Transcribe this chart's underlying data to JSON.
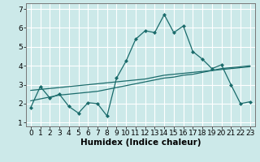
{
  "background_color": "#cce9e9",
  "grid_color": "#ffffff",
  "line_color": "#1a6b6b",
  "xlabel": "Humidex (Indice chaleur)",
  "xlabel_fontsize": 7.5,
  "tick_fontsize": 6.5,
  "xlim": [
    -0.5,
    23.5
  ],
  "ylim": [
    0.8,
    7.3
  ],
  "yticks": [
    1,
    2,
    3,
    4,
    5,
    6,
    7
  ],
  "xticks": [
    0,
    1,
    2,
    3,
    4,
    5,
    6,
    7,
    8,
    9,
    10,
    11,
    12,
    13,
    14,
    15,
    16,
    17,
    18,
    19,
    20,
    21,
    22,
    23
  ],
  "series1_x": [
    0,
    1,
    2,
    3,
    4,
    5,
    6,
    7,
    8,
    9,
    10,
    11,
    12,
    13,
    14,
    15,
    16,
    17,
    18,
    19,
    20,
    21,
    22,
    23
  ],
  "series1_y": [
    1.8,
    2.9,
    2.3,
    2.5,
    1.85,
    1.5,
    2.05,
    2.0,
    1.35,
    3.35,
    4.25,
    5.4,
    5.85,
    5.75,
    6.7,
    5.75,
    6.1,
    4.75,
    4.35,
    3.85,
    4.05,
    3.0,
    2.0,
    2.1
  ],
  "series2_x": [
    0,
    1,
    2,
    3,
    4,
    5,
    6,
    7,
    8,
    9,
    10,
    11,
    12,
    13,
    14,
    15,
    16,
    17,
    18,
    19,
    20,
    21,
    22,
    23
  ],
  "series2_y": [
    2.15,
    2.25,
    2.35,
    2.45,
    2.5,
    2.55,
    2.6,
    2.65,
    2.75,
    2.85,
    2.95,
    3.05,
    3.15,
    3.25,
    3.35,
    3.4,
    3.5,
    3.55,
    3.65,
    3.75,
    3.85,
    3.9,
    3.95,
    4.0
  ],
  "series3_x": [
    0,
    1,
    2,
    3,
    4,
    5,
    6,
    7,
    8,
    9,
    10,
    11,
    12,
    13,
    14,
    15,
    16,
    17,
    18,
    19,
    20,
    21,
    22,
    23
  ],
  "series3_y": [
    2.7,
    2.75,
    2.8,
    2.85,
    2.9,
    2.95,
    3.0,
    3.05,
    3.1,
    3.15,
    3.2,
    3.25,
    3.3,
    3.4,
    3.5,
    3.55,
    3.6,
    3.65,
    3.7,
    3.75,
    3.8,
    3.85,
    3.9,
    3.95
  ]
}
